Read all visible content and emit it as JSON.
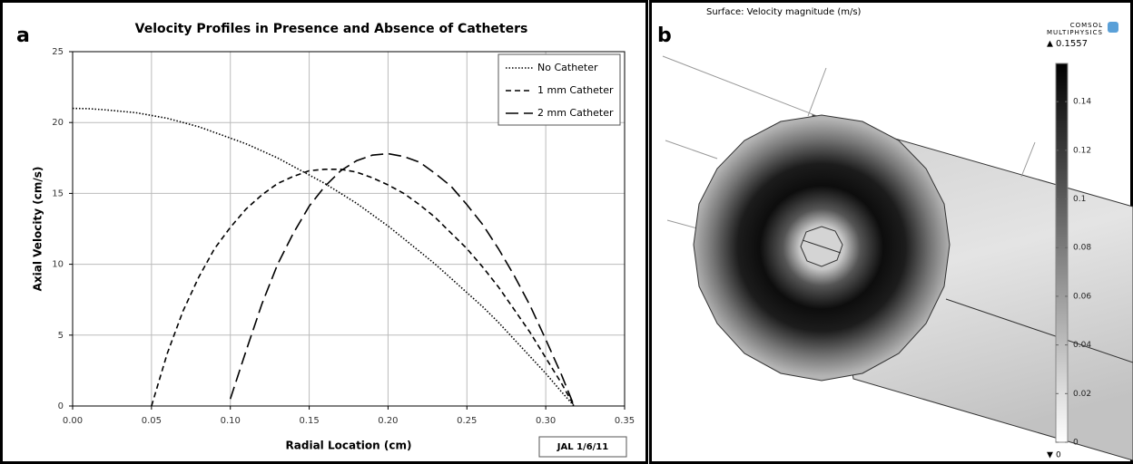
{
  "chart_data": [
    {
      "type": "line",
      "panel_label": "a",
      "title": "Velocity Profiles in Presence and Absence of Catheters",
      "x_label": "Radial Location (cm)",
      "y_label": "Axial Velocity (cm/s)",
      "annotation": "JAL 1/6/11",
      "x": [
        0,
        0.01,
        0.02,
        0.03,
        0.04,
        0.05,
        0.06,
        0.07,
        0.08,
        0.09,
        0.1,
        0.11,
        0.12,
        0.13,
        0.14,
        0.15,
        0.16,
        0.17,
        0.18,
        0.19,
        0.2,
        0.21,
        0.22,
        0.23,
        0.24,
        0.25,
        0.26,
        0.27,
        0.28,
        0.29,
        0.3,
        0.31,
        0.318
      ],
      "series": [
        {
          "name": "No Catheter",
          "color": "#000000",
          "dash": "dotted",
          "values": [
            21,
            20.98,
            20.9,
            20.8,
            20.7,
            20.5,
            20.3,
            20.0,
            19.7,
            19.3,
            18.9,
            18.5,
            18.0,
            17.5,
            16.9,
            16.3,
            15.7,
            15.0,
            14.3,
            13.5,
            12.7,
            11.8,
            10.9,
            10.0,
            9.0,
            8.0,
            7.0,
            5.9,
            4.7,
            3.5,
            2.3,
            1.0,
            0
          ]
        },
        {
          "name": "1 mm Catheter",
          "color": "#000000",
          "dash": "dashed",
          "values": [
            null,
            null,
            null,
            null,
            null,
            0,
            3.7,
            6.7,
            9.1,
            11.1,
            12.6,
            13.9,
            14.9,
            15.7,
            16.2,
            16.6,
            16.7,
            16.7,
            16.5,
            16.1,
            15.6,
            15.0,
            14.2,
            13.3,
            12.2,
            11.1,
            9.8,
            8.4,
            6.8,
            5.2,
            3.4,
            1.6,
            0
          ]
        },
        {
          "name": "2 mm Catheter",
          "color": "#000000",
          "dash": "long-dashed",
          "values": [
            null,
            null,
            null,
            null,
            null,
            null,
            null,
            null,
            null,
            null,
            0.5,
            3.9,
            7.2,
            10.0,
            12.2,
            14.1,
            15.5,
            16.6,
            17.3,
            17.7,
            17.8,
            17.6,
            17.2,
            16.4,
            15.5,
            14.2,
            12.8,
            11.1,
            9.2,
            7.1,
            4.7,
            2.2,
            0
          ]
        }
      ],
      "xlim": [
        0,
        0.35
      ],
      "xticks": [
        {
          "value": 0,
          "label": "0.00"
        },
        {
          "value": 0.05,
          "label": "0.05"
        },
        {
          "value": 0.1,
          "label": "0.10"
        },
        {
          "value": 0.15,
          "label": "0.15"
        },
        {
          "value": 0.2,
          "label": "0.20"
        },
        {
          "value": 0.25,
          "label": "0.25"
        },
        {
          "value": 0.3,
          "label": "0.30"
        },
        {
          "value": 0.35,
          "label": "0.35"
        }
      ],
      "ylim": [
        0,
        25
      ],
      "yticks": [
        0,
        5,
        10,
        15,
        20,
        25
      ],
      "grid": true,
      "legend": "top-right"
    },
    {
      "type": "surface",
      "panel_label": "b",
      "title": "Surface: Velocity magnitude (m/s)",
      "logo": [
        "COMSOL",
        "MULTIPHYSICS"
      ],
      "colormap": "gray",
      "clim": [
        0,
        0.1557
      ],
      "cticks": [
        0,
        0.02,
        0.04,
        0.06,
        0.08,
        0.1,
        0.12,
        0.14
      ]
    }
  ]
}
